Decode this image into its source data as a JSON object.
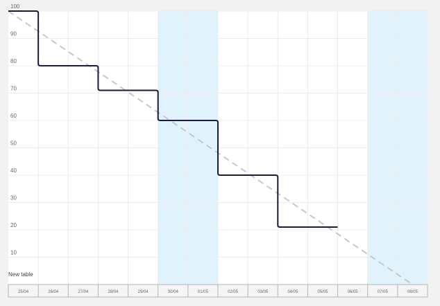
{
  "chart_data": {
    "type": "line",
    "title": "",
    "xlabel": "",
    "ylabel": "",
    "categories": [
      "25/04",
      "26/04",
      "27/04",
      "28/04",
      "29/04",
      "30/04",
      "01/05",
      "02/05",
      "03/05",
      "04/05",
      "05/05",
      "06/05",
      "07/05",
      "08/05"
    ],
    "ylim": [
      0,
      100
    ],
    "yticks": [
      10,
      20,
      30,
      40,
      50,
      60,
      70,
      80,
      90,
      100
    ],
    "grid": true,
    "highlighted_ranges": [
      [
        "30/04",
        "01/05"
      ],
      [
        "07/05",
        "08/05"
      ]
    ],
    "highlight_color": "#e0f2fb",
    "series": [
      {
        "style": "step",
        "color": "#1a1a3a",
        "points": [
          {
            "x": "25/04",
            "y": 100
          },
          {
            "x": "26/04",
            "y": 80
          },
          {
            "x": "28/04",
            "y": 71
          },
          {
            "x": "30/04",
            "y": 60
          },
          {
            "x": "02/05",
            "y": 40
          },
          {
            "x": "04/05",
            "y": 21
          },
          {
            "x": "05/05",
            "y": 21
          }
        ]
      },
      {
        "style": "dashed",
        "color": "#c8c8c8",
        "points": [
          {
            "x": "25/04",
            "y": 100
          },
          {
            "x": "08/05",
            "y": 0
          }
        ]
      }
    ],
    "table_name": "New table"
  }
}
